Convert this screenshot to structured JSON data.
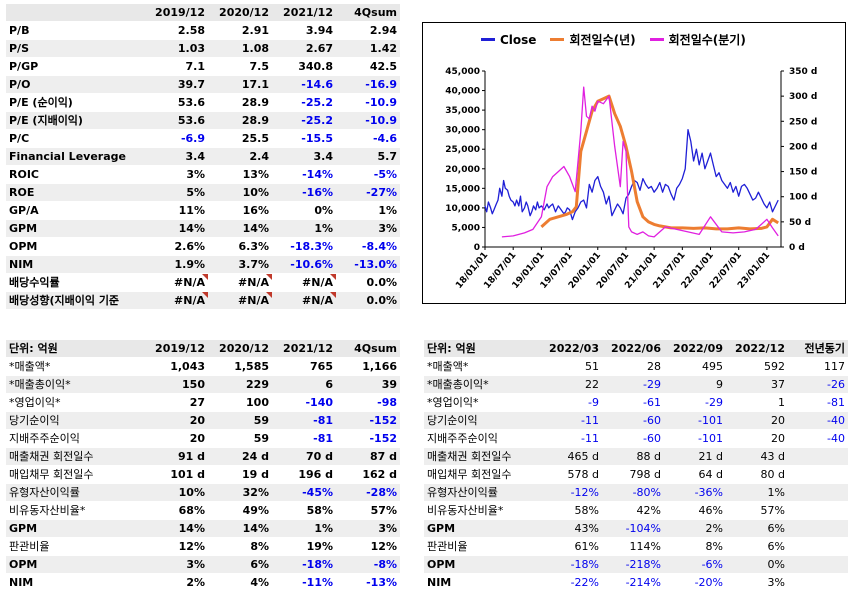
{
  "top_table": {
    "headers": [
      "",
      "2019/12",
      "2020/12",
      "2021/12",
      "4Qsum"
    ],
    "rows": [
      {
        "label": "P/B",
        "vals": [
          "2.58",
          "2.91",
          "3.94",
          "2.94"
        ],
        "neg": [
          0,
          0,
          0,
          0
        ]
      },
      {
        "label": "P/S",
        "vals": [
          "1.03",
          "1.08",
          "2.67",
          "1.42"
        ],
        "neg": [
          0,
          0,
          0,
          0
        ]
      },
      {
        "label": "P/GP",
        "vals": [
          "7.1",
          "7.5",
          "340.8",
          "42.5"
        ],
        "neg": [
          0,
          0,
          0,
          0
        ]
      },
      {
        "label": "P/O",
        "vals": [
          "39.7",
          "17.1",
          "-14.6",
          "-16.9"
        ],
        "neg": [
          0,
          0,
          1,
          1
        ]
      },
      {
        "label": "P/E (순이익)",
        "vals": [
          "53.6",
          "28.9",
          "-25.2",
          "-10.9"
        ],
        "neg": [
          0,
          0,
          1,
          1
        ]
      },
      {
        "label": "P/E (지배이익)",
        "vals": [
          "53.6",
          "28.9",
          "-25.2",
          "-10.9"
        ],
        "neg": [
          0,
          0,
          1,
          1
        ]
      },
      {
        "label": "P/C",
        "vals": [
          "-6.9",
          "25.5",
          "-15.5",
          "-4.6"
        ],
        "neg": [
          1,
          0,
          1,
          1
        ]
      },
      {
        "label": "Financial Leverage",
        "vals": [
          "3.4",
          "2.4",
          "3.4",
          "5.7"
        ],
        "neg": [
          0,
          0,
          0,
          0
        ]
      },
      {
        "label": "ROIC",
        "vals": [
          "3%",
          "13%",
          "-14%",
          "-5%"
        ],
        "neg": [
          0,
          0,
          1,
          1
        ]
      },
      {
        "label": "ROE",
        "vals": [
          "5%",
          "10%",
          "-16%",
          "-27%"
        ],
        "neg": [
          0,
          0,
          1,
          1
        ]
      },
      {
        "label": "GP/A",
        "vals": [
          "11%",
          "16%",
          "0%",
          "1%"
        ],
        "neg": [
          0,
          0,
          0,
          0
        ]
      },
      {
        "label": "GPM",
        "vals": [
          "14%",
          "14%",
          "1%",
          "3%"
        ],
        "neg": [
          0,
          0,
          0,
          0
        ]
      },
      {
        "label": "OPM",
        "vals": [
          "2.6%",
          "6.3%",
          "-18.3%",
          "-8.4%"
        ],
        "neg": [
          0,
          0,
          1,
          1
        ]
      },
      {
        "label": "NIM",
        "vals": [
          "1.9%",
          "3.7%",
          "-10.6%",
          "-13.0%"
        ],
        "neg": [
          0,
          0,
          1,
          1
        ]
      },
      {
        "label": "배당수익률",
        "vals": [
          "#N/A",
          "#N/A",
          "#N/A",
          "0.0%"
        ],
        "neg": [
          0,
          0,
          0,
          0
        ]
      },
      {
        "label": "배당성향(지배이익 기준",
        "vals": [
          "#N/A",
          "#N/A",
          "#N/A",
          "0.0%"
        ],
        "neg": [
          0,
          0,
          0,
          0
        ]
      }
    ]
  },
  "left_table": {
    "headers": [
      "단위: 억원",
      "2019/12",
      "2020/12",
      "2021/12",
      "4Qsum"
    ],
    "rows": [
      {
        "label": "*매출액*",
        "vals": [
          "1,043",
          "1,585",
          "765",
          "1,166"
        ],
        "neg": [
          0,
          0,
          0,
          0
        ]
      },
      {
        "label": "*매출총이익*",
        "vals": [
          "150",
          "229",
          "6",
          "39"
        ],
        "neg": [
          0,
          0,
          0,
          0
        ]
      },
      {
        "label": "*영업이익*",
        "vals": [
          "27",
          "100",
          "-140",
          "-98"
        ],
        "neg": [
          0,
          0,
          1,
          1
        ]
      },
      {
        "label": "당기순이익",
        "vals": [
          "20",
          "59",
          "-81",
          "-152"
        ],
        "neg": [
          0,
          0,
          1,
          1
        ]
      },
      {
        "label": "지배주주순이익",
        "vals": [
          "20",
          "59",
          "-81",
          "-152"
        ],
        "neg": [
          0,
          0,
          1,
          1
        ]
      },
      {
        "label": "매출채권 회전일수",
        "vals": [
          "91 d",
          "24 d",
          "70 d",
          "87 d"
        ],
        "neg": [
          0,
          0,
          0,
          0
        ]
      },
      {
        "label": "매입채무 회전일수",
        "vals": [
          "101 d",
          "19 d",
          "196 d",
          "162 d"
        ],
        "neg": [
          0,
          0,
          0,
          0
        ]
      },
      {
        "label": "유형자산이익률",
        "vals": [
          "10%",
          "32%",
          "-45%",
          "-28%"
        ],
        "neg": [
          0,
          0,
          1,
          1
        ]
      },
      {
        "label": "비유동자산비율*",
        "vals": [
          "68%",
          "49%",
          "58%",
          "57%"
        ],
        "neg": [
          0,
          0,
          0,
          0
        ]
      },
      {
        "label": "GPM",
        "vals": [
          "14%",
          "14%",
          "1%",
          "3%"
        ],
        "neg": [
          0,
          0,
          0,
          0
        ]
      },
      {
        "label": "판관비율",
        "vals": [
          "12%",
          "8%",
          "19%",
          "12%"
        ],
        "neg": [
          0,
          0,
          0,
          0
        ]
      },
      {
        "label": "OPM",
        "vals": [
          "3%",
          "6%",
          "-18%",
          "-8%"
        ],
        "neg": [
          0,
          0,
          1,
          1
        ]
      },
      {
        "label": "NIM",
        "vals": [
          "2%",
          "4%",
          "-11%",
          "-13%"
        ],
        "neg": [
          0,
          0,
          1,
          1
        ]
      }
    ]
  },
  "right_table": {
    "headers": [
      "단위: 억원",
      "2022/03",
      "2022/06",
      "2022/09",
      "2022/12",
      "전년동기"
    ],
    "rows": [
      {
        "label": "*매출액*",
        "vals": [
          "51",
          "28",
          "495",
          "592",
          "117"
        ],
        "neg": [
          0,
          0,
          0,
          0,
          0
        ]
      },
      {
        "label": "*매출총이익*",
        "vals": [
          "22",
          "-29",
          "9",
          "37",
          "-26"
        ],
        "neg": [
          0,
          1,
          0,
          0,
          1
        ]
      },
      {
        "label": "*영업이익*",
        "vals": [
          "-9",
          "-61",
          "-29",
          "1",
          "-81"
        ],
        "neg": [
          1,
          1,
          1,
          0,
          1
        ]
      },
      {
        "label": "당기순이익",
        "vals": [
          "-11",
          "-60",
          "-101",
          "20",
          "-40"
        ],
        "neg": [
          1,
          1,
          1,
          0,
          1
        ]
      },
      {
        "label": "지배주주순이익",
        "vals": [
          "-11",
          "-60",
          "-101",
          "20",
          "-40"
        ],
        "neg": [
          1,
          1,
          1,
          0,
          1
        ]
      },
      {
        "label": "매출채권 회전일수",
        "vals": [
          "465 d",
          "88 d",
          "21 d",
          "43 d",
          ""
        ],
        "neg": [
          0,
          0,
          0,
          0,
          0
        ]
      },
      {
        "label": "매입채무 회전일수",
        "vals": [
          "578 d",
          "798 d",
          "64 d",
          "80 d",
          ""
        ],
        "neg": [
          0,
          0,
          0,
          0,
          0
        ]
      },
      {
        "label": "유형자산이익률",
        "vals": [
          "-12%",
          "-80%",
          "-36%",
          "1%",
          ""
        ],
        "neg": [
          1,
          1,
          1,
          0,
          0
        ]
      },
      {
        "label": "비유동자산비율*",
        "vals": [
          "58%",
          "42%",
          "46%",
          "57%",
          ""
        ],
        "neg": [
          0,
          0,
          0,
          0,
          0
        ]
      },
      {
        "label": "GPM",
        "vals": [
          "43%",
          "-104%",
          "2%",
          "6%",
          ""
        ],
        "neg": [
          0,
          1,
          0,
          0,
          0
        ]
      },
      {
        "label": "판관비율",
        "vals": [
          "61%",
          "114%",
          "8%",
          "6%",
          ""
        ],
        "neg": [
          0,
          0,
          0,
          0,
          0
        ]
      },
      {
        "label": "OPM",
        "vals": [
          "-18%",
          "-218%",
          "-6%",
          "0%",
          ""
        ],
        "neg": [
          1,
          1,
          1,
          0,
          0
        ]
      },
      {
        "label": "NIM",
        "vals": [
          "-22%",
          "-214%",
          "-20%",
          "3%",
          ""
        ],
        "neg": [
          1,
          1,
          1,
          0,
          0
        ]
      }
    ]
  },
  "chart_data": {
    "type": "line",
    "title": "",
    "legend": [
      "Close",
      "회전일수(년)",
      "회전일수(분기)"
    ],
    "legend_position": "top",
    "colors": {
      "Close": "#1f1fd6",
      "회전일수(년)": "#ed7d31",
      "회전일수(분기)": "#e020e0"
    },
    "x_ticks": [
      "18/01/01",
      "18/07/01",
      "19/01/01",
      "19/07/01",
      "20/01/01",
      "20/07/01",
      "21/01/01",
      "21/07/01",
      "22/01/01",
      "22/07/01",
      "23/01/01"
    ],
    "y_left": {
      "ticks": [
        "0",
        "5,000",
        "10,000",
        "15,000",
        "20,000",
        "25,000",
        "30,000",
        "35,000",
        "40,000",
        "45,000"
      ],
      "range": [
        0,
        45000
      ]
    },
    "y_right": {
      "ticks": [
        "0 d",
        "50 d",
        "100 d",
        "150 d",
        "200 d",
        "250 d",
        "300 d",
        "350 d"
      ],
      "range": [
        0,
        350
      ]
    },
    "series": [
      {
        "name": "Close",
        "axis": "left",
        "x": [
          0,
          0.03,
          0.06,
          0.1,
          0.13,
          0.16,
          0.2,
          0.23,
          0.26,
          0.3,
          0.33,
          0.36,
          0.4,
          0.43,
          0.46,
          0.5,
          0.53,
          0.56,
          0.6,
          0.63,
          0.66,
          0.7,
          0.73,
          0.76,
          0.8,
          0.83,
          0.86,
          0.9,
          0.93,
          0.96,
          1.0,
          1.05,
          1.1,
          1.13,
          1.16,
          1.2,
          1.25,
          1.3,
          1.35,
          1.4,
          1.43,
          1.46,
          1.5,
          1.55,
          1.6,
          1.65,
          1.7,
          1.75,
          1.8,
          1.85,
          1.9,
          1.95,
          2.0,
          2.05,
          2.1,
          2.15,
          2.2,
          2.25,
          2.3,
          2.35,
          2.4,
          2.45,
          2.5,
          2.55,
          2.6,
          2.65,
          2.7,
          2.75,
          2.8,
          2.85,
          2.9,
          2.95,
          3.0,
          3.05,
          3.1,
          3.15,
          3.2,
          3.25,
          3.3,
          3.35,
          3.4,
          3.45,
          3.5,
          3.55,
          3.6,
          3.65,
          3.7,
          3.75,
          3.8,
          3.85,
          3.9,
          3.95,
          4.0,
          4.05,
          4.1,
          4.15,
          4.2,
          4.25,
          4.3,
          4.35,
          4.4,
          4.45,
          4.5,
          4.55,
          4.6,
          4.65,
          4.7,
          4.75,
          4.8,
          4.85,
          4.9,
          4.95,
          5.0,
          5.05,
          5.1,
          5.15,
          5.2
        ],
        "values": [
          10500,
          9000,
          11500,
          10000,
          8500,
          9500,
          11000,
          12000,
          15000,
          13000,
          17000,
          15000,
          14500,
          13000,
          12000,
          11500,
          10500,
          12000,
          10500,
          13000,
          9000,
          10000,
          11500,
          10500,
          8000,
          9000,
          10500,
          9500,
          11500,
          10000,
          10500,
          9500,
          11000,
          10000,
          10500,
          11000,
          9000,
          10500,
          9500,
          8500,
          9000,
          10000,
          9500,
          7000,
          9000,
          10000,
          11500,
          12000,
          10000,
          16000,
          14000,
          17000,
          18000,
          15500,
          14000,
          11000,
          13000,
          8000,
          9500,
          11000,
          10000,
          8500,
          12500,
          13500,
          15500,
          17000,
          16500,
          14500,
          17500,
          16000,
          15000,
          15500,
          14000,
          15000,
          16500,
          14000,
          16000,
          15500,
          13500,
          12000,
          15000,
          16000,
          17500,
          20000,
          30000,
          27000,
          22000,
          25000,
          21000,
          24000,
          20000,
          22000,
          24000,
          21000,
          18000,
          19000,
          17000,
          16000,
          15000,
          16500,
          14000,
          15500,
          13000,
          15500,
          16000,
          15000,
          13500,
          12000,
          12500,
          14000,
          12500,
          11000,
          10000,
          11500,
          9000,
          10500,
          12000
        ]
      },
      {
        "name": "회전일수(년)",
        "axis": "right",
        "x": [
          1.0,
          1.15,
          1.3,
          1.45,
          1.55,
          1.62,
          1.7,
          1.8,
          1.9,
          2.0,
          2.1,
          2.2,
          2.3,
          2.4,
          2.5,
          2.6,
          2.7,
          2.8,
          2.9,
          3.0,
          3.1,
          3.2,
          3.3,
          3.5,
          3.7,
          3.9,
          4.1,
          4.3,
          4.5,
          4.7,
          4.9,
          5.0,
          5.1,
          5.2
        ],
        "values": [
          40,
          55,
          60,
          65,
          70,
          80,
          190,
          230,
          270,
          290,
          295,
          300,
          265,
          240,
          200,
          150,
          90,
          60,
          50,
          45,
          42,
          40,
          38,
          38,
          37,
          38,
          36,
          36,
          38,
          36,
          37,
          40,
          55,
          48
        ]
      },
      {
        "name": "회전일수(분기)",
        "axis": "right",
        "x": [
          0.3,
          0.5,
          0.7,
          0.85,
          1.0,
          1.1,
          1.2,
          1.3,
          1.4,
          1.5,
          1.6,
          1.7,
          1.75,
          1.8,
          1.85,
          1.9,
          1.95,
          2.0,
          2.1,
          2.2,
          2.3,
          2.4,
          2.45,
          2.5,
          2.55,
          2.6,
          2.7,
          2.8,
          2.9,
          3.0,
          3.2,
          3.4,
          3.6,
          3.8,
          4.0,
          4.2,
          4.4,
          4.6,
          4.8,
          4.9,
          5.0,
          5.1,
          5.2
        ],
        "values": [
          20,
          22,
          28,
          35,
          60,
          120,
          140,
          150,
          160,
          140,
          110,
          230,
          318,
          260,
          255,
          280,
          270,
          290,
          285,
          300,
          200,
          120,
          210,
          190,
          40,
          30,
          25,
          30,
          22,
          20,
          40,
          35,
          30,
          25,
          60,
          30,
          28,
          30,
          35,
          45,
          55,
          38,
          22
        ]
      }
    ]
  }
}
